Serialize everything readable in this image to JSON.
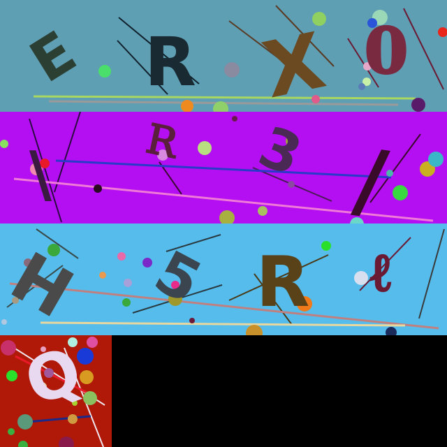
{
  "panels": [
    {
      "id": "panel-1",
      "background": "#5f9fb4",
      "characters": [
        {
          "text": "E",
          "color": "#2c3f33"
        },
        {
          "text": "R",
          "color": "#1a2a33"
        },
        {
          "text": "X",
          "color": "#6b4a22"
        },
        {
          "text": "0",
          "color": "#7a2a40"
        }
      ]
    },
    {
      "id": "panel-2",
      "background": "#b40ff2",
      "characters": [
        {
          "text": "\\",
          "color": "#3a1a40"
        },
        {
          "text": "R",
          "color": "#5a1f3a"
        },
        {
          "text": "3",
          "color": "#4a2a55"
        },
        {
          "text": "/",
          "color": "#3a0a2a"
        }
      ]
    },
    {
      "id": "panel-3",
      "background": "#55bcec",
      "characters": [
        {
          "text": "H",
          "color": "#4a4a4a"
        },
        {
          "text": "5",
          "color": "#3a4550"
        },
        {
          "text": "R",
          "color": "#5a4218"
        },
        {
          "text": "ℓ",
          "color": "#6a1a33"
        }
      ]
    },
    {
      "id": "panel-4",
      "background": "#b01808",
      "characters": [
        {
          "text": "Q",
          "color": "#e8d8f0"
        }
      ]
    }
  ]
}
